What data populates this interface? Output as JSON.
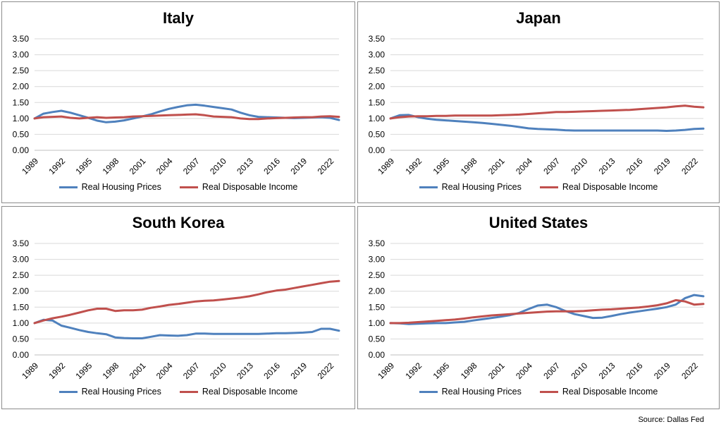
{
  "source": "Source: Dallas Fed",
  "colors": {
    "housing": "#4f81bd",
    "income": "#c0504d",
    "grid": "#d9d9d9"
  },
  "chart_data": [
    {
      "type": "line",
      "title": "Italy",
      "x": [
        1989,
        1990,
        1991,
        1992,
        1993,
        1994,
        1995,
        1996,
        1997,
        1998,
        1999,
        2000,
        2001,
        2002,
        2003,
        2004,
        2005,
        2006,
        2007,
        2008,
        2009,
        2010,
        2011,
        2012,
        2013,
        2014,
        2015,
        2016,
        2017,
        2018,
        2019,
        2020,
        2021,
        2022,
        2023
      ],
      "x_ticks": [
        "1989",
        "1992",
        "1995",
        "1998",
        "2001",
        "2004",
        "2007",
        "2010",
        "2013",
        "2016",
        "2019",
        "2022"
      ],
      "y_ticks": [
        "0.00",
        "0.50",
        "1.00",
        "1.50",
        "2.00",
        "2.50",
        "3.00",
        "3.50"
      ],
      "ylim": [
        0,
        3.5
      ],
      "legend": "bottom",
      "grid": true,
      "series": [
        {
          "name": "Real Housing Prices",
          "color": "#4f81bd",
          "values": [
            1.0,
            1.15,
            1.2,
            1.24,
            1.18,
            1.1,
            1.02,
            0.93,
            0.88,
            0.9,
            0.94,
            1.0,
            1.06,
            1.13,
            1.22,
            1.3,
            1.36,
            1.41,
            1.43,
            1.4,
            1.36,
            1.32,
            1.28,
            1.18,
            1.1,
            1.05,
            1.04,
            1.03,
            1.02,
            1.01,
            1.02,
            1.03,
            1.04,
            1.02,
            0.95
          ]
        },
        {
          "name": "Real Disposable Income",
          "color": "#c0504d",
          "values": [
            1.0,
            1.04,
            1.05,
            1.06,
            1.02,
            1.0,
            1.02,
            1.04,
            1.02,
            1.03,
            1.04,
            1.06,
            1.07,
            1.08,
            1.09,
            1.1,
            1.11,
            1.12,
            1.13,
            1.1,
            1.06,
            1.05,
            1.04,
            1.0,
            0.98,
            0.98,
            1.0,
            1.01,
            1.02,
            1.03,
            1.04,
            1.04,
            1.06,
            1.07,
            1.05
          ]
        }
      ]
    },
    {
      "type": "line",
      "title": "Japan",
      "x": [
        1989,
        1990,
        1991,
        1992,
        1993,
        1994,
        1995,
        1996,
        1997,
        1998,
        1999,
        2000,
        2001,
        2002,
        2003,
        2004,
        2005,
        2006,
        2007,
        2008,
        2009,
        2010,
        2011,
        2012,
        2013,
        2014,
        2015,
        2016,
        2017,
        2018,
        2019,
        2020,
        2021,
        2022,
        2023
      ],
      "x_ticks": [
        "1989",
        "1992",
        "1995",
        "1998",
        "2001",
        "2004",
        "2007",
        "2010",
        "2013",
        "2016",
        "2019",
        "2022"
      ],
      "y_ticks": [
        "0.00",
        "0.50",
        "1.00",
        "1.50",
        "2.00",
        "2.50",
        "3.00",
        "3.50"
      ],
      "ylim": [
        0,
        3.5
      ],
      "legend": "bottom",
      "grid": true,
      "series": [
        {
          "name": "Real Housing Prices",
          "color": "#4f81bd",
          "values": [
            1.0,
            1.1,
            1.11,
            1.04,
            0.99,
            0.96,
            0.94,
            0.92,
            0.9,
            0.88,
            0.86,
            0.83,
            0.8,
            0.77,
            0.73,
            0.69,
            0.67,
            0.66,
            0.65,
            0.63,
            0.62,
            0.62,
            0.62,
            0.62,
            0.62,
            0.62,
            0.62,
            0.62,
            0.62,
            0.62,
            0.61,
            0.62,
            0.64,
            0.67,
            0.68
          ]
        },
        {
          "name": "Real Disposable Income",
          "color": "#c0504d",
          "values": [
            1.0,
            1.04,
            1.06,
            1.07,
            1.07,
            1.08,
            1.08,
            1.09,
            1.09,
            1.09,
            1.09,
            1.09,
            1.1,
            1.11,
            1.12,
            1.14,
            1.16,
            1.18,
            1.2,
            1.2,
            1.21,
            1.22,
            1.23,
            1.24,
            1.25,
            1.26,
            1.27,
            1.29,
            1.31,
            1.33,
            1.35,
            1.38,
            1.4,
            1.37,
            1.35
          ]
        }
      ]
    },
    {
      "type": "line",
      "title": "South Korea",
      "x": [
        1989,
        1990,
        1991,
        1992,
        1993,
        1994,
        1995,
        1996,
        1997,
        1998,
        1999,
        2000,
        2001,
        2002,
        2003,
        2004,
        2005,
        2006,
        2007,
        2008,
        2009,
        2010,
        2011,
        2012,
        2013,
        2014,
        2015,
        2016,
        2017,
        2018,
        2019,
        2020,
        2021,
        2022,
        2023
      ],
      "x_ticks": [
        "1989",
        "1992",
        "1995",
        "1998",
        "2001",
        "2004",
        "2007",
        "2010",
        "2013",
        "2016",
        "2019",
        "2022"
      ],
      "y_ticks": [
        "0.00",
        "0.50",
        "1.00",
        "1.50",
        "2.00",
        "2.50",
        "3.00",
        "3.50"
      ],
      "ylim": [
        0,
        3.5
      ],
      "legend": "bottom",
      "grid": true,
      "series": [
        {
          "name": "Real Housing Prices",
          "color": "#4f81bd",
          "values": [
            1.0,
            1.1,
            1.08,
            0.92,
            0.85,
            0.78,
            0.72,
            0.68,
            0.65,
            0.55,
            0.53,
            0.52,
            0.52,
            0.57,
            0.62,
            0.61,
            0.6,
            0.62,
            0.67,
            0.67,
            0.66,
            0.66,
            0.66,
            0.66,
            0.66,
            0.66,
            0.67,
            0.68,
            0.68,
            0.69,
            0.7,
            0.72,
            0.82,
            0.82,
            0.76
          ]
        },
        {
          "name": "Real Disposable Income",
          "color": "#c0504d",
          "values": [
            1.0,
            1.08,
            1.15,
            1.2,
            1.26,
            1.33,
            1.4,
            1.45,
            1.45,
            1.38,
            1.4,
            1.4,
            1.42,
            1.48,
            1.52,
            1.57,
            1.6,
            1.64,
            1.68,
            1.7,
            1.71,
            1.74,
            1.77,
            1.8,
            1.84,
            1.9,
            1.97,
            2.02,
            2.05,
            2.1,
            2.15,
            2.2,
            2.25,
            2.3,
            2.32
          ]
        }
      ]
    },
    {
      "type": "line",
      "title": "United States",
      "x": [
        1989,
        1990,
        1991,
        1992,
        1993,
        1994,
        1995,
        1996,
        1997,
        1998,
        1999,
        2000,
        2001,
        2002,
        2003,
        2004,
        2005,
        2006,
        2007,
        2008,
        2009,
        2010,
        2011,
        2012,
        2013,
        2014,
        2015,
        2016,
        2017,
        2018,
        2019,
        2020,
        2021,
        2022,
        2023
      ],
      "x_ticks": [
        "1989",
        "1992",
        "1995",
        "1998",
        "2001",
        "2004",
        "2007",
        "2010",
        "2013",
        "2016",
        "2019",
        "2022"
      ],
      "y_ticks": [
        "0.00",
        "0.50",
        "1.00",
        "1.50",
        "2.00",
        "2.50",
        "3.00",
        "3.50"
      ],
      "ylim": [
        0,
        3.5
      ],
      "legend": "bottom",
      "grid": true,
      "series": [
        {
          "name": "Real Housing Prices",
          "color": "#4f81bd",
          "values": [
            1.0,
            0.99,
            0.97,
            0.98,
            0.99,
            1.0,
            1.0,
            1.02,
            1.04,
            1.08,
            1.12,
            1.16,
            1.2,
            1.25,
            1.32,
            1.44,
            1.55,
            1.58,
            1.5,
            1.38,
            1.28,
            1.22,
            1.16,
            1.17,
            1.22,
            1.28,
            1.33,
            1.37,
            1.41,
            1.45,
            1.5,
            1.58,
            1.78,
            1.88,
            1.84
          ]
        },
        {
          "name": "Real Disposable Income",
          "color": "#c0504d",
          "values": [
            1.0,
            1.0,
            1.01,
            1.03,
            1.05,
            1.07,
            1.09,
            1.11,
            1.14,
            1.18,
            1.21,
            1.24,
            1.26,
            1.28,
            1.3,
            1.32,
            1.34,
            1.36,
            1.37,
            1.37,
            1.37,
            1.38,
            1.4,
            1.42,
            1.43,
            1.45,
            1.47,
            1.49,
            1.52,
            1.56,
            1.62,
            1.72,
            1.68,
            1.58,
            1.6
          ]
        }
      ]
    }
  ]
}
